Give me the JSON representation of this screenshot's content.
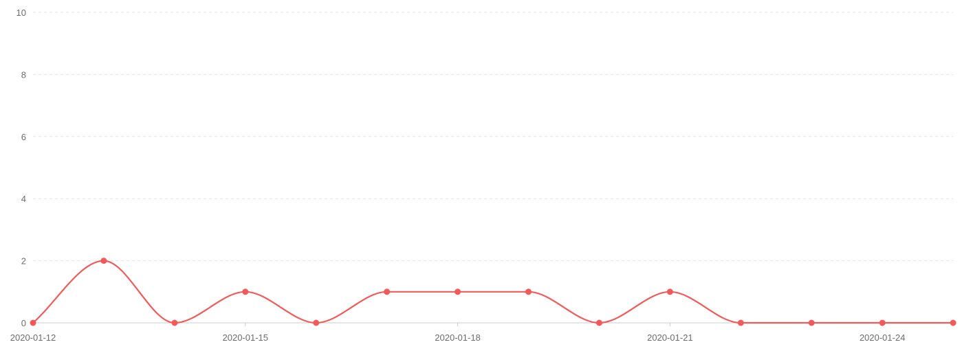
{
  "chart_data": {
    "type": "line",
    "x": [
      "2020-01-12",
      "2020-01-13",
      "2020-01-14",
      "2020-01-15",
      "2020-01-16",
      "2020-01-17",
      "2020-01-18",
      "2020-01-19",
      "2020-01-20",
      "2020-01-21",
      "2020-01-22",
      "2020-01-23",
      "2020-01-24",
      "2020-01-25"
    ],
    "x_tick_labels": [
      "2020-01-12",
      "2020-01-15",
      "2020-01-18",
      "2020-01-21",
      "2020-01-24"
    ],
    "series": [
      {
        "values": [
          0,
          2,
          0,
          1,
          0,
          1,
          1,
          1,
          0,
          1,
          0,
          0,
          0,
          0
        ],
        "color": "#f25a5a",
        "smooth": true,
        "markers": true
      }
    ],
    "y_ticks": [
      0,
      2,
      4,
      6,
      8,
      10
    ],
    "ylim": [
      0,
      10
    ],
    "title": "",
    "xlabel": "",
    "ylabel": "",
    "grid": "horizontal dashed",
    "legend": "none"
  },
  "colors": {
    "grid": "#e6e6e6",
    "axis": "#cccccc",
    "tick_text": "#6b6b6b"
  }
}
